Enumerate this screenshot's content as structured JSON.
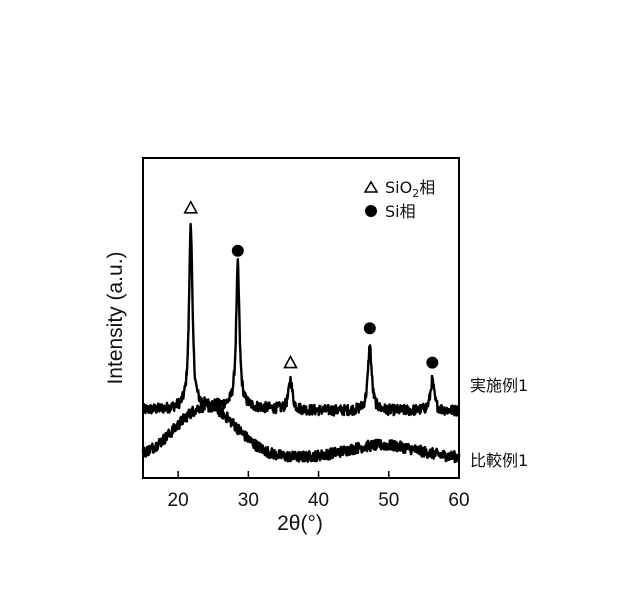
{
  "chart_data": {
    "type": "line",
    "xlabel": "2θ(°)",
    "ylabel": "Intensity (a.u.)",
    "xlim": [
      15,
      60
    ],
    "xticks": [
      "20",
      "30",
      "40",
      "50",
      "60"
    ],
    "yticks_shown": false,
    "grid": false,
    "legend": {
      "placement": "top-right",
      "entries": [
        {
          "marker": "open-triangle",
          "text": "SiO",
          "subscript": "2",
          "suffix": "相"
        },
        {
          "marker": "filled-circle",
          "text": "Si相"
        }
      ]
    },
    "series": [
      {
        "name": "実施例1",
        "baseline": 0.22,
        "peaks": [
          {
            "x": 21.8,
            "height": 0.86,
            "marker": "open-triangle"
          },
          {
            "x": 28.5,
            "height": 0.66,
            "marker": "filled-circle"
          },
          {
            "x": 36.0,
            "height": 0.14,
            "marker": "open-triangle"
          },
          {
            "x": 47.3,
            "height": 0.3,
            "marker": "filled-circle"
          },
          {
            "x": 56.2,
            "height": 0.14,
            "marker": "filled-circle"
          }
        ]
      },
      {
        "name": "比較例1",
        "baseline": 0.0,
        "humps": [
          {
            "x": 24.0,
            "height": 0.24,
            "width": 6.0
          },
          {
            "x": 49.0,
            "height": 0.06,
            "width": 7.0
          }
        ]
      }
    ]
  }
}
